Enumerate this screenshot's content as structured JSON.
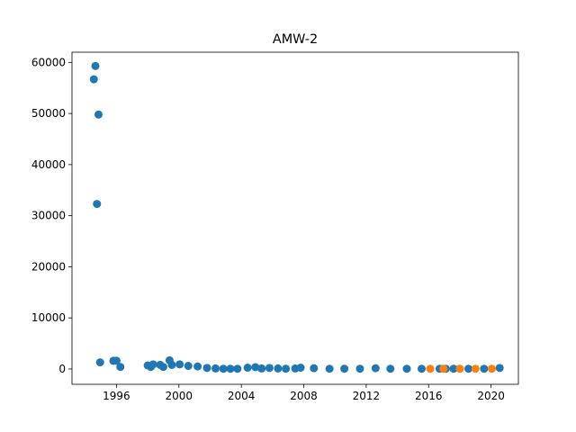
{
  "chart_data": {
    "type": "scatter",
    "title": "AMW-2",
    "xlabel": "",
    "ylabel": "",
    "xlim": [
      1993.15,
      2021.75
    ],
    "ylim": [
      -3000,
      62000
    ],
    "grid": false,
    "x_ticks": [
      {
        "value": 1996,
        "label": "1996"
      },
      {
        "value": 2000,
        "label": "2000"
      },
      {
        "value": 2004,
        "label": "2004"
      },
      {
        "value": 2008,
        "label": "2008"
      },
      {
        "value": 2012,
        "label": "2012"
      },
      {
        "value": 2016,
        "label": "2016"
      },
      {
        "value": 2020,
        "label": "2020"
      }
    ],
    "y_ticks": [
      {
        "value": 0,
        "label": "0"
      },
      {
        "value": 10000,
        "label": "10000"
      },
      {
        "value": 20000,
        "label": "20000"
      },
      {
        "value": 30000,
        "label": "30000"
      },
      {
        "value": 40000,
        "label": "40000"
      },
      {
        "value": 50000,
        "label": "50000"
      },
      {
        "value": 60000,
        "label": "60000"
      }
    ],
    "series": [
      {
        "color": "#1f77b4",
        "points": [
          [
            1994.55,
            56700
          ],
          [
            1994.65,
            59300
          ],
          [
            1994.75,
            32300
          ],
          [
            1994.85,
            49800
          ],
          [
            1994.95,
            1300
          ],
          [
            1995.8,
            1600
          ],
          [
            1996.0,
            1600
          ],
          [
            1996.25,
            400
          ],
          [
            1998.0,
            700
          ],
          [
            1998.2,
            400
          ],
          [
            1998.35,
            900
          ],
          [
            1998.8,
            800
          ],
          [
            1999.0,
            400
          ],
          [
            1999.4,
            1700
          ],
          [
            1999.55,
            800
          ],
          [
            2000.05,
            900
          ],
          [
            2000.6,
            600
          ],
          [
            2001.2,
            500
          ],
          [
            2001.8,
            200
          ],
          [
            2002.35,
            100
          ],
          [
            2002.85,
            50
          ],
          [
            2003.3,
            50
          ],
          [
            2003.75,
            50
          ],
          [
            2004.4,
            250
          ],
          [
            2004.9,
            350
          ],
          [
            2005.3,
            100
          ],
          [
            2005.8,
            200
          ],
          [
            2006.35,
            100
          ],
          [
            2006.85,
            50
          ],
          [
            2007.45,
            100
          ],
          [
            2007.8,
            250
          ],
          [
            2008.65,
            150
          ],
          [
            2009.65,
            50
          ],
          [
            2010.6,
            50
          ],
          [
            2011.6,
            50
          ],
          [
            2012.6,
            150
          ],
          [
            2013.55,
            50
          ],
          [
            2014.6,
            50
          ],
          [
            2015.55,
            50
          ],
          [
            2016.7,
            50
          ],
          [
            2017.1,
            50
          ],
          [
            2017.6,
            50
          ],
          [
            2018.55,
            50
          ],
          [
            2019.55,
            50
          ],
          [
            2020.55,
            200
          ]
        ]
      },
      {
        "color": "#ff7f0e",
        "points": [
          [
            2016.1,
            50
          ],
          [
            2016.95,
            50
          ],
          [
            2018.0,
            50
          ],
          [
            2019.0,
            50
          ],
          [
            2020.05,
            50
          ]
        ]
      }
    ]
  }
}
